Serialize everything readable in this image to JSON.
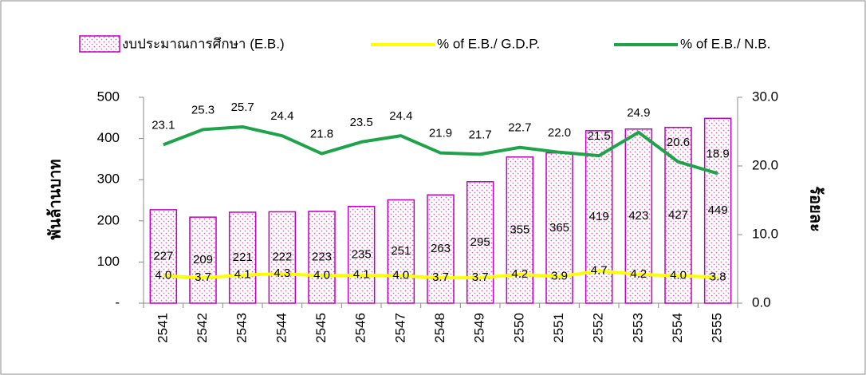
{
  "chart_data": {
    "type": "combo",
    "categories": [
      "2541",
      "2542",
      "2543",
      "2544",
      "2545",
      "2546",
      "2547",
      "2548",
      "2549",
      "2550",
      "2551",
      "2552",
      "2553",
      "2554",
      "2555"
    ],
    "series": [
      {
        "name": "งบประมาณการศึกษา (E.B.)",
        "type": "bar",
        "color": "#c000c0",
        "values": [
          227,
          209,
          221,
          222,
          223,
          235,
          251,
          263,
          295,
          355,
          365,
          419,
          423,
          427,
          449
        ]
      },
      {
        "name": "% of E.B./ G.D.P.",
        "type": "line",
        "axis": "y2",
        "color": "#ffff00",
        "values": [
          4.0,
          3.7,
          4.1,
          4.3,
          4.0,
          4.1,
          4.0,
          3.7,
          3.7,
          4.2,
          3.9,
          4.7,
          4.2,
          4.0,
          3.8
        ],
        "value_labels": [
          "4.0",
          "3.7",
          "4.1",
          "4.3",
          "4.0",
          "4.1",
          "4.0",
          "3.7",
          "3.7",
          "4.2",
          "3.9",
          "4.7",
          "4.2",
          "4.0",
          "3.8"
        ]
      },
      {
        "name": "% of E.B./ N.B.",
        "type": "line",
        "axis": "y2",
        "color": "#1fa34a",
        "values": [
          23.1,
          25.3,
          25.7,
          24.4,
          21.8,
          23.5,
          24.4,
          21.9,
          21.7,
          22.7,
          22.0,
          21.5,
          24.9,
          20.6,
          18.9
        ],
        "value_labels": [
          "23.1",
          "25.3",
          "25.7",
          "24.4",
          "21.8",
          "23.5",
          "24.4",
          "21.9",
          "21.7",
          "22.7",
          "22.0",
          "21.5",
          "24.9",
          "20.6",
          "18.9"
        ]
      }
    ],
    "y_label": "พันล้านบาท",
    "y2_label": "ร้อยละ",
    "ylim": [
      0,
      500
    ],
    "yticks": [
      {
        "value": 0,
        "label": "-"
      },
      100,
      200,
      300,
      400,
      500
    ],
    "y2lim": [
      0,
      30
    ],
    "y2ticks": [
      {
        "value": 0,
        "label": "0.0"
      },
      {
        "value": 10,
        "label": "10.0"
      },
      {
        "value": 20,
        "label": "20.0"
      },
      {
        "value": 30,
        "label": "30.0"
      }
    ],
    "legend": "top"
  }
}
